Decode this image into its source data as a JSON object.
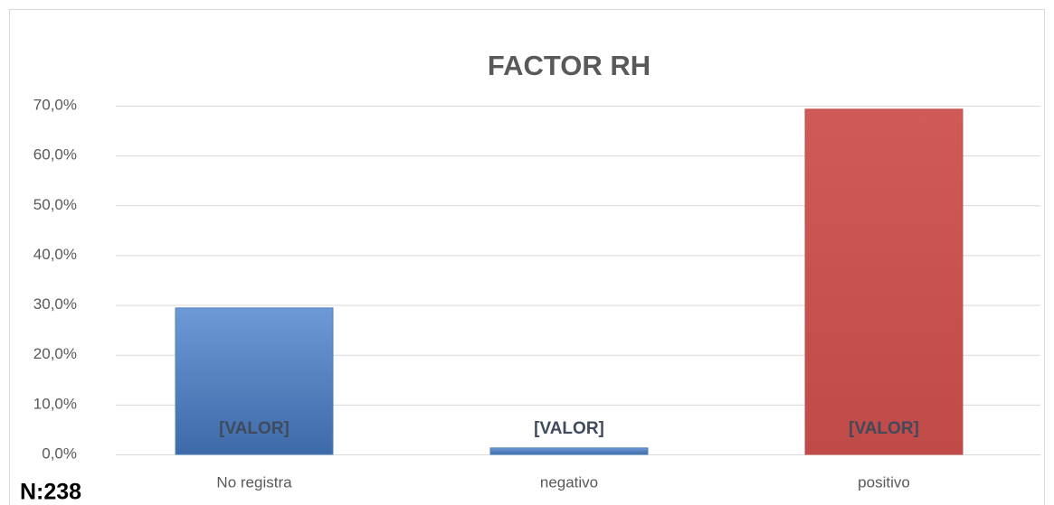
{
  "chart_data": {
    "type": "bar",
    "title": "FACTOR RH",
    "categories": [
      "No registra",
      "negativo",
      "positivo"
    ],
    "values": [
      29.4,
      1.3,
      69.3
    ],
    "value_labels": [
      "[VALOR]",
      "[VALOR]",
      "[VALOR]"
    ],
    "colors": [
      "#4f81bd",
      "#4f81bd",
      "#c0504d"
    ],
    "ylim": [
      0,
      70
    ],
    "yticks": [
      {
        "value": 0,
        "label": "0,0%"
      },
      {
        "value": 10,
        "label": "10,0%"
      },
      {
        "value": 20,
        "label": "20,0%"
      },
      {
        "value": 30,
        "label": "30,0%"
      },
      {
        "value": 40,
        "label": "40,0%"
      },
      {
        "value": 50,
        "label": "50,0%"
      },
      {
        "value": 60,
        "label": "60,0%"
      },
      {
        "value": 70,
        "label": "70,0%"
      }
    ],
    "grid": true,
    "annotation": "N:238"
  }
}
